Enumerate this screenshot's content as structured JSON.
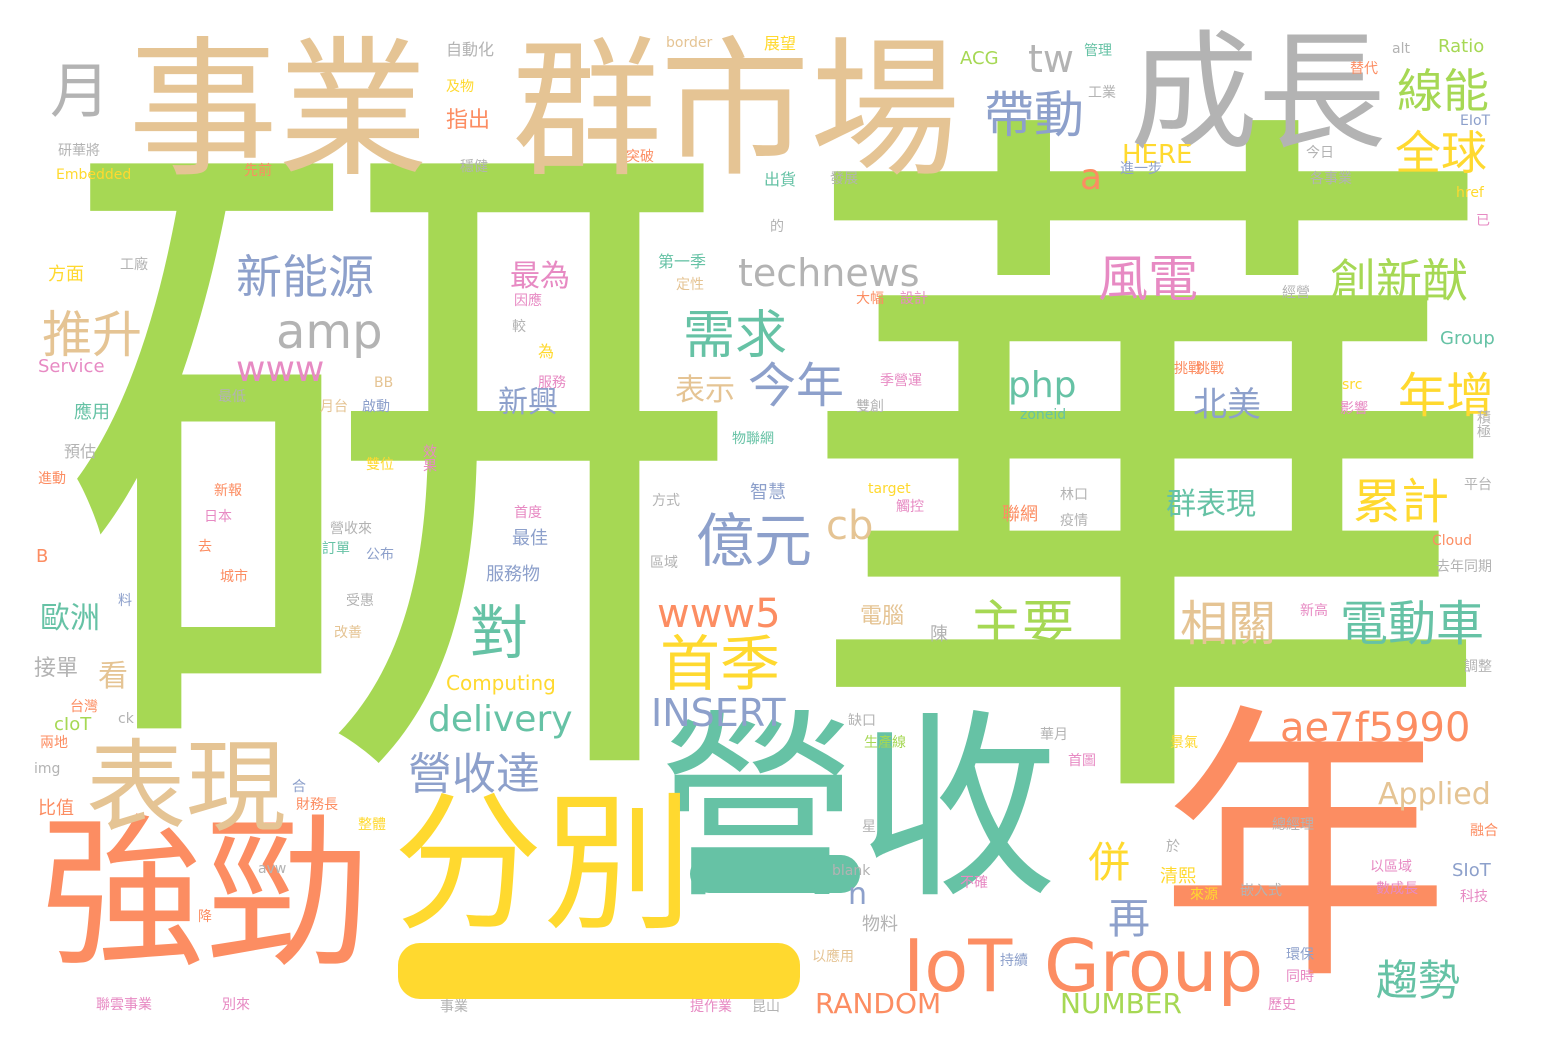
{
  "palette": {
    "green": "#a6d854",
    "teal": "#66c2a5",
    "orange": "#fc8d62",
    "tan": "#e5c494",
    "yellow": "#ffd92f",
    "blue": "#8da0cb",
    "grey": "#b3b3b3",
    "pink": "#e78ac3"
  },
  "words": [
    "研",
    "華",
    "營收",
    "年",
    "強勁",
    "分別",
    "事業",
    "群",
    "市場",
    "成長",
    "表現",
    "IoT",
    "Group",
    "月",
    "帶動",
    "tw",
    "線能",
    "全球",
    "a",
    "HERE",
    "technews",
    "新能源",
    "amp",
    "推升",
    "需求",
    "風電",
    "創新猷",
    "www",
    "今年",
    "php",
    "年增",
    "表示",
    "新興",
    "北美",
    "億元",
    "cb",
    "累計",
    "www5",
    "對",
    "首季",
    "主要",
    "相關",
    "電動車",
    "delivery",
    "INSERT",
    "ae7f5990",
    "營收達",
    "併",
    "再",
    "趨勢",
    "n",
    "RANDOM",
    "NUMBER",
    "Applied",
    "Computing",
    "最為",
    "歐洲",
    "看",
    "接單",
    "自動化",
    "及物",
    "指出",
    "border",
    "展望",
    "ACG",
    "管理",
    "Ratio",
    "替代",
    "alt",
    "研華將",
    "Embedded",
    "先前",
    "突破",
    "出貨",
    "發展",
    "第一季",
    "定性",
    "工廠",
    "方面",
    "Service",
    "應用",
    "預估",
    "新報",
    "日本",
    "城市",
    "大幅",
    "設計",
    "經營",
    "Group",
    "src",
    "影響",
    "zoneid",
    "target",
    "林口",
    "平台",
    "聯網",
    "疫情",
    "Cloud",
    "去年同期",
    "服務物",
    "最佳",
    "首度",
    "營收來",
    "訂單",
    "公布",
    "區域",
    "方式",
    "智慧",
    "電腦",
    "陳",
    "受惠",
    "改善",
    "新高",
    "調整",
    "缺口",
    "生產線",
    "華月",
    "首圖",
    "景氣",
    "總經理",
    "比值",
    "財務長",
    "整體",
    "於",
    "不確",
    "清熙",
    "來源",
    "嵌入式",
    "以區域",
    "數成長",
    "科技",
    "SIoT",
    "物料",
    "blank",
    "以應用",
    "持續",
    "環保",
    "同時",
    "歷史",
    "聯雲事業",
    "別來",
    "事業",
    "提作業",
    "昆山",
    "台灣",
    "兩地",
    "cIoT",
    "img",
    "ck",
    "B",
    "BB",
    "最低",
    "月台",
    "啟動",
    "雙位",
    "效果",
    "積極",
    "融合",
    "觸控",
    "avw",
    "因應",
    "較",
    "為",
    "物聯網",
    "季營運",
    "雙創",
    "挑戰",
    "今日",
    "各事業",
    "href",
    "已",
    "EIoT",
    "的",
    "穩健",
    "進一步",
    "工業",
    "降",
    "去",
    "進動",
    "料",
    "合",
    "星",
    "群表現",
    "服務",
    "挑戰"
  ]
}
